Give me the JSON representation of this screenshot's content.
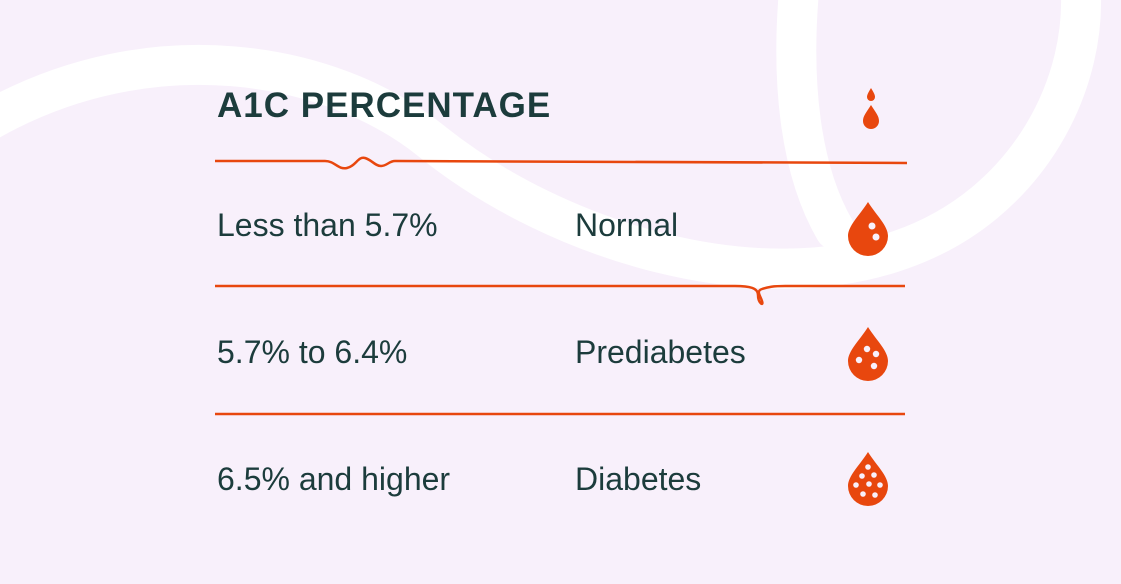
{
  "title": "A1C PERCENTAGE",
  "rows": [
    {
      "range": "Less than 5.7%",
      "category": "Normal",
      "icon": "blood-drop-icon"
    },
    {
      "range": "5.7% to 6.4%",
      "category": "Prediabetes",
      "icon": "blood-drop-icon"
    },
    {
      "range": "6.5% and higher",
      "category": "Diabetes",
      "icon": "blood-drop-icon"
    }
  ],
  "colors": {
    "background": "#f8f0fb",
    "accent": "#e8470e",
    "text": "#1c3c3c"
  }
}
